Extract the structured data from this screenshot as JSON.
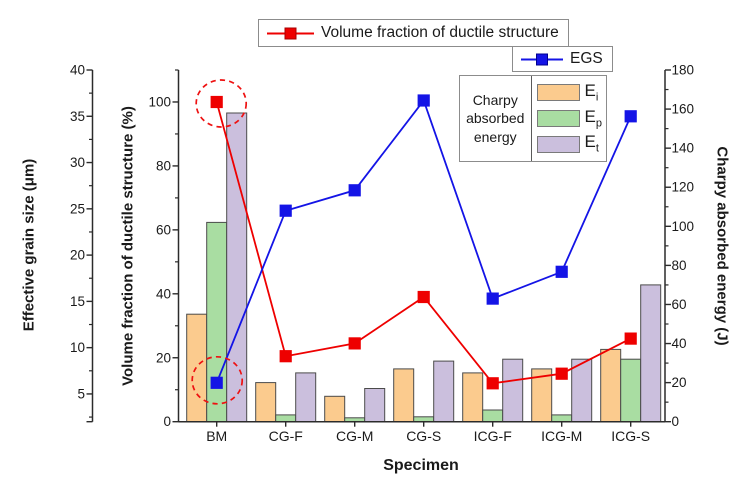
{
  "chart_data": {
    "type": "combo: grouped bars + two marker lines",
    "categories": [
      "BM",
      "CG-F",
      "CG-M",
      "CG-S",
      "ICG-F",
      "ICG-M",
      "ICG-S"
    ],
    "x_axis_label": "Specimen",
    "axes": {
      "egs": {
        "label": "Effective grain size (μm)",
        "side": "outer-left",
        "range": [
          2,
          40
        ],
        "major_ticks": [
          5,
          10,
          15,
          20,
          25,
          30,
          35,
          40
        ],
        "minor_step": 2.5,
        "end_tick_bottom": true
      },
      "volume": {
        "label": "Volume fraction of ductile structure (%)",
        "side": "inner-left",
        "range": [
          0,
          110
        ],
        "major_ticks": [
          0,
          20,
          40,
          60,
          80,
          100
        ],
        "minor_step": 10
      },
      "charpy": {
        "label": "Charpy absorbed energy (J)",
        "side": "right",
        "range": [
          0,
          180
        ],
        "major_ticks": [
          0,
          20,
          40,
          60,
          80,
          100,
          120,
          140,
          160,
          180
        ],
        "minor_step": 10
      }
    },
    "line_series": [
      {
        "name": "Volume fraction of ductile structure",
        "axis": "volume",
        "color": "#ee0000",
        "marker": "square",
        "values": [
          100,
          20.5,
          24.5,
          39,
          12,
          15,
          26
        ]
      },
      {
        "name": "EGS",
        "axis": "egs",
        "color": "#1414e6",
        "marker": "square",
        "values": [
          6.2,
          24.8,
          27,
          36.7,
          15.3,
          18.2,
          35
        ]
      }
    ],
    "bar_series": [
      {
        "name": "Ei",
        "label_base": "E",
        "label_sub": "i",
        "axis": "charpy",
        "fill": "#fbcb8e",
        "values": [
          55,
          20,
          13,
          27,
          25,
          27,
          37
        ]
      },
      {
        "name": "Ep",
        "label_base": "E",
        "label_sub": "p",
        "axis": "charpy",
        "fill": "#a9dda2",
        "values": [
          102,
          3.5,
          2,
          2.5,
          6,
          3.5,
          32
        ]
      },
      {
        "name": "Et",
        "label_base": "E",
        "label_sub": "t",
        "axis": "charpy",
        "fill": "#cbbfdd",
        "values": [
          158,
          25,
          17,
          31,
          32,
          32,
          70
        ]
      }
    ],
    "legend_box": {
      "title_lines": [
        "Charpy",
        "absorbed",
        "energy"
      ]
    },
    "annotations": [
      {
        "type": "dashed-ellipse",
        "color": "#ee1111",
        "series_index": 0,
        "category": "BM"
      },
      {
        "type": "dashed-ellipse",
        "color": "#ee1111",
        "series_index": 1,
        "category": "BM"
      }
    ],
    "legend_position": "top",
    "grid": false,
    "colors": {
      "bar_border": "#4b4b4b",
      "axis": "#2b2b2b"
    }
  }
}
